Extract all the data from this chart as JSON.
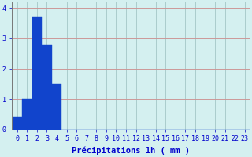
{
  "values": [
    0.4,
    1.0,
    3.7,
    2.8,
    1.5,
    0,
    0,
    0,
    0,
    0,
    0,
    0,
    0,
    0,
    0,
    0,
    0,
    0,
    0,
    0,
    0,
    0,
    0,
    0
  ],
  "bar_color": "#1144cc",
  "bar_edge_color": "#1144cc",
  "background_color": "#d4f0f0",
  "grid_color": "#aacccc",
  "grid_color_h": "#cc9999",
  "xlabel": "Précipitations 1h ( mm )",
  "xlabel_color": "#0000cc",
  "tick_color": "#0000cc",
  "ylim": [
    0,
    4.2
  ],
  "yticks": [
    0,
    1,
    2,
    3,
    4
  ],
  "xlim": [
    -0.5,
    23.5
  ],
  "xtick_labels": [
    "0",
    "1",
    "2",
    "3",
    "4",
    "5",
    "6",
    "7",
    "8",
    "9",
    "10",
    "11",
    "12",
    "13",
    "14",
    "15",
    "16",
    "17",
    "18",
    "19",
    "20",
    "21",
    "22",
    "23"
  ],
  "xlabel_fontsize": 7.5,
  "tick_fontsize": 6.0,
  "fig_width": 3.2,
  "fig_height": 2.0,
  "dpi": 100
}
